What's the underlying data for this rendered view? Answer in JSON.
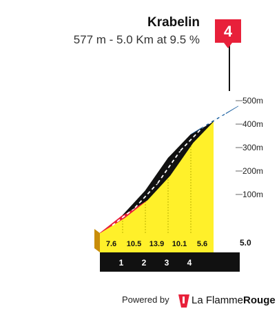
{
  "chart_data": {
    "type": "area",
    "title": "Krabelin",
    "subtitle": "577 m - 5.0 Km at 9.5 %",
    "x_unit": "km",
    "y_unit": "m",
    "total_distance_label": "5.0",
    "total_distance": 5.0,
    "climb_category": "4",
    "ylim": [
      0,
      577
    ],
    "y_ticks": [
      100,
      200,
      300,
      400,
      500
    ],
    "y_tick_labels": [
      "100m",
      "200m",
      "300m",
      "400m",
      "500m"
    ],
    "km_markers": [
      1,
      2,
      3,
      4
    ],
    "km_labels": [
      "1",
      "2",
      "3",
      "4"
    ],
    "segments": [
      {
        "start_km": 0,
        "end_km": 1,
        "gradient": 7.6,
        "label": "7.6",
        "color": "#e8203a"
      },
      {
        "start_km": 1,
        "end_km": 2,
        "gradient": 10.5,
        "label": "10.5",
        "color": "#111111"
      },
      {
        "start_km": 2,
        "end_km": 3,
        "gradient": 13.9,
        "label": "13.9",
        "color": "#111111"
      },
      {
        "start_km": 3,
        "end_km": 4,
        "gradient": 10.1,
        "label": "10.1",
        "color": "#111111"
      },
      {
        "start_km": 4,
        "end_km": 5,
        "gradient": 5.6,
        "label": "5.6",
        "color": "#1a5fa0"
      }
    ],
    "fill_color": "#fff02a",
    "grid": false
  },
  "footer": {
    "powered_by": "Powered by",
    "brand_a": "La Flamme",
    "brand_b": "Rouge"
  }
}
